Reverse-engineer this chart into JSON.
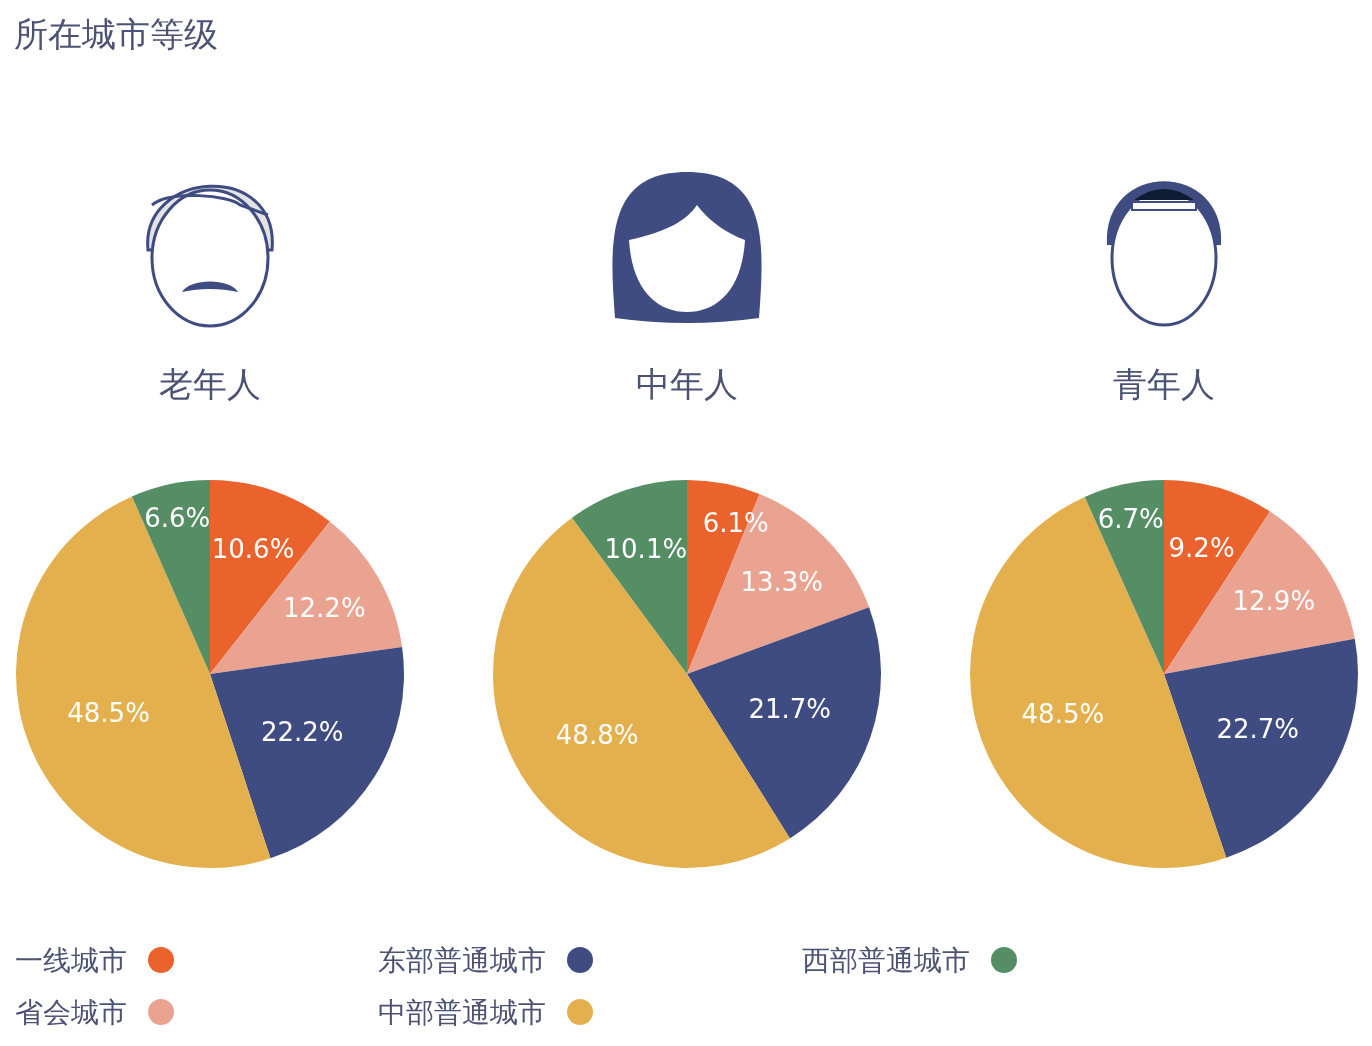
{
  "chart_data": [
    {
      "type": "other",
      "title": "所在城市等级"
    },
    {
      "type": "pie",
      "title": "老年人",
      "categories": [
        "一线城市",
        "省会城市",
        "东部普通城市",
        "中部普通城市",
        "西部普通城市"
      ],
      "values": [
        10.6,
        12.2,
        22.2,
        48.5,
        6.6
      ],
      "value_labels": [
        "10.6%",
        "12.2%",
        "22.2%",
        "48.5%",
        "6.6%"
      ],
      "colors": [
        "#ea622c",
        "#eaa391",
        "#3f4c82",
        "#e4b04e",
        "#558e65"
      ],
      "legend": "bottom"
    },
    {
      "type": "pie",
      "title": "中年人",
      "categories": [
        null,
        null,
        null,
        null,
        null
      ],
      "values": [
        6.1,
        13.3,
        21.7,
        48.8,
        10.1
      ],
      "value_labels": [
        "6.1%",
        "13.3%",
        "21.7%",
        "48.8%",
        "10.1%"
      ],
      "colors": [
        "#ea622c",
        "#eaa391",
        "#3f4c82",
        "#e4b04e",
        "#558e65"
      ]
    },
    {
      "type": "pie",
      "title": "青年人",
      "categories": [
        null,
        null,
        null,
        null,
        null
      ],
      "values": [
        9.2,
        12.9,
        22.7,
        48.5,
        6.7
      ],
      "value_labels": [
        "9.2%",
        "12.9%",
        "22.7%",
        "48.5%",
        "6.7%"
      ],
      "colors": [
        "#ea622c",
        "#eaa391",
        "#3f4c82",
        "#e4b04e",
        "#558e65"
      ]
    }
  ]
}
